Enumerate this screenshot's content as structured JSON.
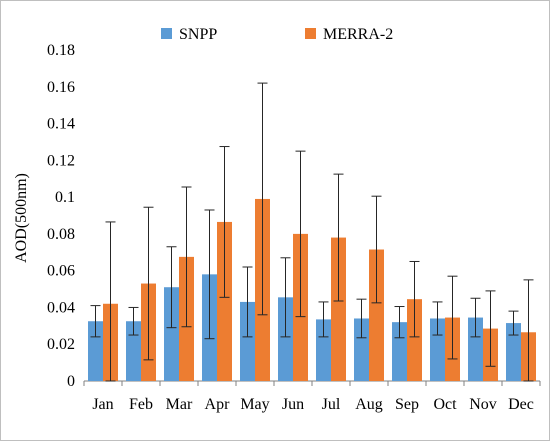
{
  "chart_data": {
    "type": "bar",
    "title": "",
    "xlabel": "",
    "ylabel": "AOD(500nm)",
    "ylim": [
      0,
      0.18
    ],
    "ytick_step": 0.02,
    "grid": false,
    "legend_position": "top-center",
    "categories": [
      "Jan",
      "Feb",
      "Mar",
      "Apr",
      "May",
      "Jun",
      "Jul",
      "Aug",
      "Sep",
      "Oct",
      "Nov",
      "Dec"
    ],
    "series": [
      {
        "name": "SNPP",
        "color": "#5b9bd5",
        "values": [
          0.0325,
          0.0325,
          0.051,
          0.058,
          0.043,
          0.0455,
          0.0335,
          0.034,
          0.032,
          0.034,
          0.0345,
          0.0315
        ],
        "error": [
          0.0085,
          0.0075,
          0.022,
          0.035,
          0.019,
          0.0215,
          0.0095,
          0.0105,
          0.0085,
          0.009,
          0.0105,
          0.0065
        ]
      },
      {
        "name": "MERRA-2",
        "color": "#ed7d31",
        "values": [
          0.042,
          0.053,
          0.0675,
          0.0865,
          0.099,
          0.08,
          0.078,
          0.0715,
          0.0445,
          0.0345,
          0.0285,
          0.0265
        ],
        "error": [
          0.0445,
          0.0415,
          0.038,
          0.041,
          0.063,
          0.045,
          0.0345,
          0.029,
          0.0205,
          0.0225,
          0.0205,
          0.0285
        ]
      }
    ]
  }
}
